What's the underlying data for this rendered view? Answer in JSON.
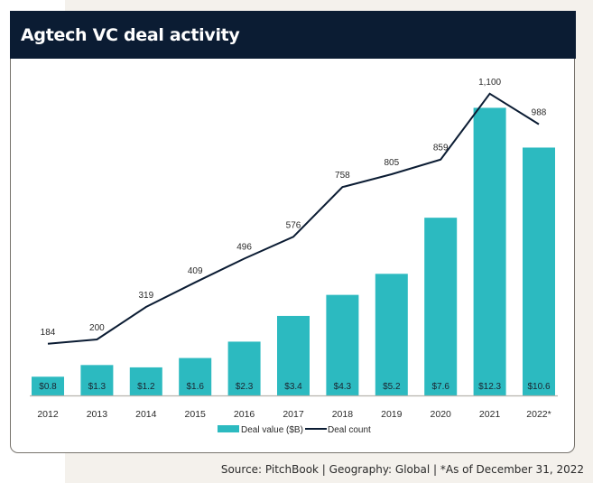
{
  "title": "Agtech VC deal activity",
  "footer": "Source: PitchBook  |  Geography: Global  |  *As of December 31, 2022",
  "colors": {
    "bar": "#2cbac0",
    "line": "#0b1c33",
    "header": "#0b1c33",
    "axis": "#b7b3ad"
  },
  "chart_data": {
    "type": "bar",
    "title": "Agtech VC deal activity",
    "xlabel": "",
    "ylabel": "",
    "categories": [
      "2012",
      "2013",
      "2014",
      "2015",
      "2016",
      "2017",
      "2018",
      "2019",
      "2020",
      "2021",
      "2022*"
    ],
    "series": [
      {
        "name": "Deal value ($B)",
        "type": "bar",
        "axis": "left",
        "values": [
          0.8,
          1.3,
          1.2,
          1.6,
          2.3,
          3.4,
          4.3,
          5.2,
          7.6,
          12.3,
          10.6
        ],
        "labels": [
          "$0.8",
          "$1.3",
          "$1.2",
          "$1.6",
          "$2.3",
          "$3.4",
          "$4.3",
          "$5.2",
          "$7.6",
          "$12.3",
          "$10.6"
        ]
      },
      {
        "name": "Deal count",
        "type": "line",
        "axis": "right",
        "values": [
          184,
          200,
          319,
          409,
          496,
          576,
          758,
          805,
          859,
          1100,
          988
        ],
        "labels": [
          "184",
          "200",
          "319",
          "409",
          "496",
          "576",
          "758",
          "805",
          "859",
          "1,100",
          "988"
        ]
      }
    ],
    "legend": {
      "position": "bottom-center",
      "entries": [
        "Deal value ($B)",
        "Deal count"
      ]
    },
    "grid": false,
    "y_axes_visible": false
  }
}
